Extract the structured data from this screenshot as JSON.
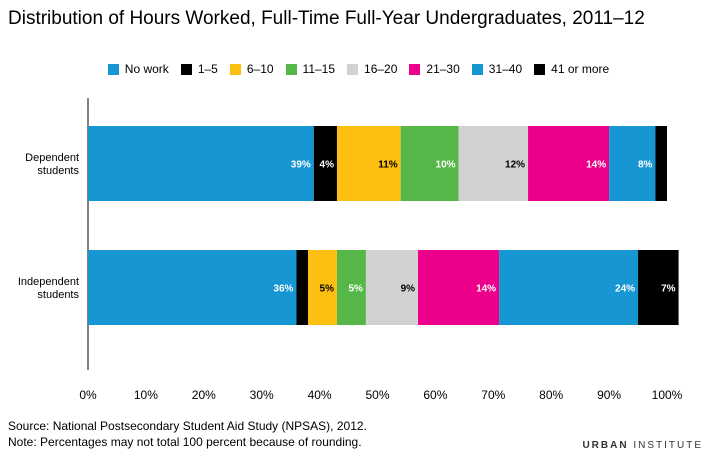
{
  "title": "Distribution of Hours Worked, Full-Time Full-Year Undergraduates, 2011–12",
  "footer": {
    "source": "Source: National Postsecondary Student Aid Study (NPSAS), 2012.",
    "note": "Note: Percentages may not total 100 percent because of rounding."
  },
  "brand": {
    "part1": "URBAN",
    "part2": "INSTITUTE"
  },
  "chart_data": {
    "type": "bar",
    "orientation": "horizontal",
    "stacked": true,
    "categories": [
      [
        "Dependent",
        "students"
      ],
      [
        "Independent",
        "students"
      ]
    ],
    "series": [
      {
        "name": "No work",
        "color": "#1696d2",
        "label_color": "#ffffff",
        "values": [
          39,
          36
        ]
      },
      {
        "name": "1–5",
        "color": "#000000",
        "label_color": "#ffffff",
        "values": [
          4,
          2
        ]
      },
      {
        "name": "6–10",
        "color": "#fdbf11",
        "label_color": "#000000",
        "values": [
          11,
          5
        ]
      },
      {
        "name": "11–15",
        "color": "#55b748",
        "label_color": "#ffffff",
        "values": [
          10,
          5
        ]
      },
      {
        "name": "16–20",
        "color": "#d2d2d2",
        "label_color": "#000000",
        "values": [
          12,
          9
        ]
      },
      {
        "name": "21–30",
        "color": "#ec008b",
        "label_color": "#ffffff",
        "values": [
          14,
          14
        ]
      },
      {
        "name": "31–40",
        "color": "#1696d2",
        "label_color": "#ffffff",
        "values": [
          8,
          24
        ]
      },
      {
        "name": "41 or more",
        "color": "#000000",
        "label_color": "#ffffff",
        "values": [
          2,
          7
        ]
      }
    ],
    "data_labels": [
      [
        "39%",
        "4%",
        "11%",
        "10%",
        "12%",
        "14%",
        "8%",
        ""
      ],
      [
        "36%",
        "",
        "5%",
        "5%",
        "9%",
        "14%",
        "24%",
        "7%"
      ]
    ],
    "xlim": [
      0,
      100
    ],
    "xticks": [
      0,
      10,
      20,
      30,
      40,
      50,
      60,
      70,
      80,
      90,
      100
    ],
    "xtick_labels": [
      "0%",
      "10%",
      "20%",
      "30%",
      "40%",
      "50%",
      "60%",
      "70%",
      "80%",
      "90%",
      "100%"
    ],
    "legend_position": "top"
  }
}
